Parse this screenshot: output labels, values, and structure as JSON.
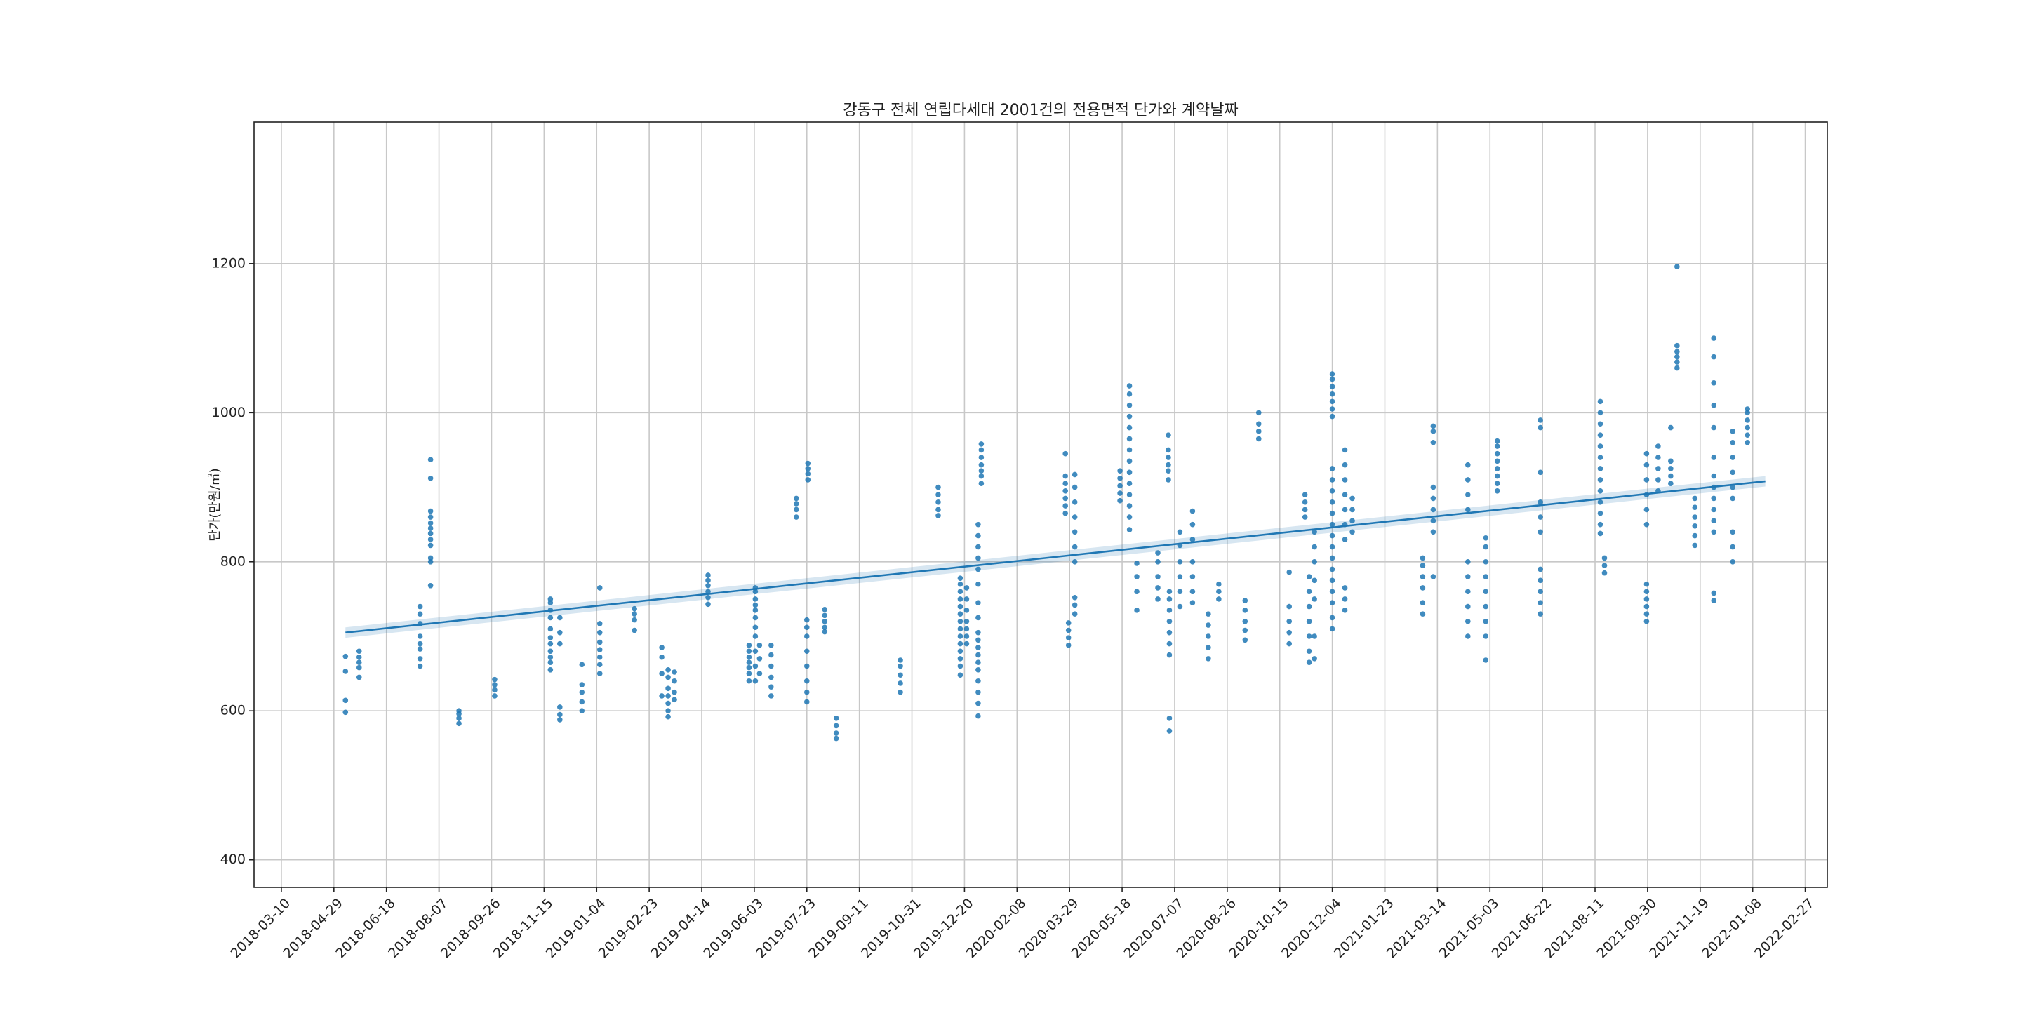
{
  "chart_data": {
    "type": "scatter",
    "title": "강동구 전체 연립다세대 2001건의 전용면적 단가와 계약날짜",
    "xlabel": "",
    "ylabel": "단가(만원/㎡)",
    "xlim": [
      "2018-02-12",
      "2022-03-20"
    ],
    "ylim": [
      363,
      1390
    ],
    "grid": true,
    "x_ticks": [
      "2018-03-10",
      "2018-04-29",
      "2018-06-18",
      "2018-08-07",
      "2018-09-26",
      "2018-11-15",
      "2019-01-04",
      "2019-02-23",
      "2019-04-14",
      "2019-06-03",
      "2019-07-23",
      "2019-09-11",
      "2019-10-31",
      "2019-12-20",
      "2020-02-08",
      "2020-03-29",
      "2020-05-18",
      "2020-07-07",
      "2020-08-26",
      "2020-10-15",
      "2020-12-04",
      "2021-01-23",
      "2021-03-14",
      "2021-05-03",
      "2021-06-22",
      "2021-08-11",
      "2021-09-30",
      "2021-11-19",
      "2022-01-08",
      "2022-02-27"
    ],
    "y_ticks": [
      400,
      600,
      800,
      1000,
      1200
    ],
    "colors": {
      "points": "#1f77b4",
      "regression": "#1f77b4",
      "confidence_band": "#1f77b4"
    },
    "regression": {
      "x": [
        "2018-05-10",
        "2022-01-20"
      ],
      "y": [
        705,
        908
      ],
      "ci_halfwidth": 7
    },
    "series": [
      {
        "clusters": [
          [
            "2018-05-10",
            [
              598,
              614,
              653,
              673
            ]
          ],
          [
            "2018-05-23",
            [
              645,
              658,
              665,
              672,
              680
            ]
          ],
          [
            "2018-07-20",
            [
              660,
              670,
              683,
              690,
              700,
              717,
              730,
              740
            ]
          ],
          [
            "2018-07-30",
            [
              768,
              800,
              805,
              822,
              830,
              838,
              845,
              852,
              860,
              868,
              912,
              937
            ]
          ],
          [
            "2018-08-26",
            [
              583,
              590,
              596,
              600
            ]
          ],
          [
            "2018-09-29",
            [
              620,
              628,
              635,
              642
            ]
          ],
          [
            "2018-11-21",
            [
              655,
              665,
              672,
              680,
              690,
              698,
              710,
              725,
              735,
              745,
              750
            ]
          ],
          [
            "2018-11-30",
            [
              588,
              595,
              605,
              690,
              705,
              725
            ]
          ],
          [
            "2018-12-21",
            [
              600,
              612,
              625,
              635,
              662
            ]
          ],
          [
            "2019-01-07",
            [
              650,
              662,
              672,
              682,
              692,
              705,
              717,
              765
            ]
          ],
          [
            "2019-02-09",
            [
              708,
              722,
              730,
              737
            ]
          ],
          [
            "2019-03-07",
            [
              620,
              650,
              672,
              685
            ]
          ],
          [
            "2019-03-13",
            [
              592,
              600,
              610,
              620,
              630,
              645,
              655
            ]
          ],
          [
            "2019-03-19",
            [
              615,
              625,
              640,
              652
            ]
          ],
          [
            "2019-04-20",
            [
              743,
              752,
              760,
              768,
              775,
              782
            ]
          ],
          [
            "2019-05-29",
            [
              640,
              650,
              658,
              665,
              672,
              680,
              688
            ]
          ],
          [
            "2019-06-04",
            [
              640,
              660,
              680,
              700,
              712,
              725,
              735,
              742,
              750,
              760,
              765
            ]
          ],
          [
            "2019-06-08",
            [
              650,
              670,
              688
            ]
          ],
          [
            "2019-06-19",
            [
              620,
              632,
              645,
              660,
              675,
              688
            ]
          ],
          [
            "2019-07-13",
            [
              860,
              870,
              878,
              885
            ]
          ],
          [
            "2019-07-23",
            [
              612,
              625,
              640,
              660,
              680,
              700,
              712,
              722
            ]
          ],
          [
            "2019-07-24",
            [
              910,
              918,
              925,
              932
            ]
          ],
          [
            "2019-08-09",
            [
              706,
              712,
              720,
              728,
              736
            ]
          ],
          [
            "2019-08-20",
            [
              563,
              570,
              580,
              590
            ]
          ],
          [
            "2019-10-20",
            [
              625,
              637,
              648,
              660,
              668
            ]
          ],
          [
            "2019-11-25",
            [
              862,
              870,
              880,
              890,
              900
            ]
          ],
          [
            "2019-12-16",
            [
              648,
              660,
              670,
              680,
              690,
              700,
              710,
              720,
              730,
              740,
              750,
              760,
              770,
              778
            ]
          ],
          [
            "2019-12-22",
            [
              690,
              700,
              710,
              720,
              735,
              750,
              765
            ]
          ],
          [
            "2020-01-02",
            [
              593,
              610,
              625,
              640,
              655,
              665,
              675,
              685,
              695,
              705,
              725,
              745,
              770,
              790,
              805,
              820,
              835,
              850
            ]
          ],
          [
            "2020-01-05",
            [
              905,
              915,
              922,
              930,
              940,
              950,
              958
            ]
          ],
          [
            "2020-03-25",
            [
              865,
              875,
              885,
              895,
              905,
              915,
              945
            ]
          ],
          [
            "2020-03-28",
            [
              688,
              698,
              708,
              718
            ]
          ],
          [
            "2020-04-03",
            [
              730,
              742,
              752,
              800,
              820,
              840,
              860,
              880,
              900,
              917
            ]
          ],
          [
            "2020-05-16",
            [
              882,
              892,
              902,
              912,
              922
            ]
          ],
          [
            "2020-05-25",
            [
              843,
              860,
              875,
              890,
              905,
              920,
              935,
              950,
              965,
              980,
              995,
              1010,
              1025,
              1036
            ]
          ],
          [
            "2020-06-01",
            [
              735,
              760,
              780,
              798
            ]
          ],
          [
            "2020-06-21",
            [
              750,
              765,
              780,
              800,
              812
            ]
          ],
          [
            "2020-07-01",
            [
              910,
              922,
              930,
              940,
              950,
              970
            ]
          ],
          [
            "2020-07-02",
            [
              573,
              590,
              675,
              690,
              705,
              720,
              735,
              750,
              760
            ]
          ],
          [
            "2020-07-12",
            [
              740,
              760,
              780,
              800,
              822,
              840
            ]
          ],
          [
            "2020-07-24",
            [
              745,
              760,
              780,
              800,
              830,
              850,
              868
            ]
          ],
          [
            "2020-08-08",
            [
              670,
              685,
              700,
              715,
              730
            ]
          ],
          [
            "2020-08-18",
            [
              750,
              760,
              770
            ]
          ],
          [
            "2020-09-12",
            [
              695,
              708,
              720,
              735,
              748
            ]
          ],
          [
            "2020-09-25",
            [
              965,
              975,
              985,
              1000
            ]
          ],
          [
            "2020-10-24",
            [
              690,
              705,
              720,
              740,
              786
            ]
          ],
          [
            "2020-11-08",
            [
              860,
              870,
              880,
              890
            ]
          ],
          [
            "2020-11-12",
            [
              665,
              680,
              700,
              720,
              740,
              760,
              780
            ]
          ],
          [
            "2020-11-17",
            [
              670,
              700,
              750,
              775,
              800,
              820,
              840
            ]
          ],
          [
            "2020-12-04",
            [
              710,
              725,
              745,
              760,
              775,
              790,
              805,
              820,
              835,
              850,
              865,
              880,
              895,
              910,
              925,
              995,
              1005,
              1015,
              1025,
              1035,
              1045,
              1052
            ]
          ],
          [
            "2020-12-16",
            [
              735,
              750,
              765,
              830,
              850,
              870,
              890,
              910,
              930,
              950
            ]
          ],
          [
            "2020-12-23",
            [
              840,
              855,
              870,
              885
            ]
          ],
          [
            "2021-02-28",
            [
              730,
              745,
              765,
              780,
              795,
              805
            ]
          ],
          [
            "2021-03-10",
            [
              780,
              840,
              855,
              870,
              885,
              900,
              960,
              975,
              982
            ]
          ],
          [
            "2021-04-12",
            [
              700,
              720,
              740,
              760,
              780,
              800,
              870,
              890,
              910,
              930
            ]
          ],
          [
            "2021-04-29",
            [
              668,
              700,
              720,
              740,
              760,
              780,
              800,
              820,
              832
            ]
          ],
          [
            "2021-05-10",
            [
              895,
              905,
              915,
              925,
              935,
              945,
              955,
              962
            ]
          ],
          [
            "2021-06-20",
            [
              730,
              745,
              760,
              775,
              790,
              840,
              860,
              880,
              920,
              980,
              990
            ]
          ],
          [
            "2021-08-16",
            [
              838,
              850,
              865,
              880,
              895,
              910,
              925,
              940,
              955,
              970,
              985,
              1000,
              1015
            ]
          ],
          [
            "2021-08-20",
            [
              785,
              795,
              805
            ]
          ],
          [
            "2021-09-29",
            [
              720,
              730,
              740,
              750,
              760,
              770,
              850,
              870,
              890,
              910,
              930,
              945
            ]
          ],
          [
            "2021-10-10",
            [
              895,
              910,
              925,
              940,
              955
            ]
          ],
          [
            "2021-10-22",
            [
              905,
              915,
              925,
              935,
              980
            ]
          ],
          [
            "2021-10-28",
            [
              1060,
              1068,
              1075,
              1082,
              1090,
              1196
            ]
          ],
          [
            "2021-11-14",
            [
              822,
              835,
              848,
              860,
              873,
              885
            ]
          ],
          [
            "2021-12-02",
            [
              748,
              758,
              840,
              855,
              870,
              885,
              900,
              915,
              940,
              980,
              1010,
              1040,
              1075,
              1100
            ]
          ],
          [
            "2021-12-20",
            [
              800,
              820,
              840,
              885,
              900,
              920,
              940,
              960,
              975
            ]
          ],
          [
            "2022-01-03",
            [
              960,
              970,
              980,
              990,
              1000,
              1005
            ]
          ]
        ]
      }
    ]
  }
}
